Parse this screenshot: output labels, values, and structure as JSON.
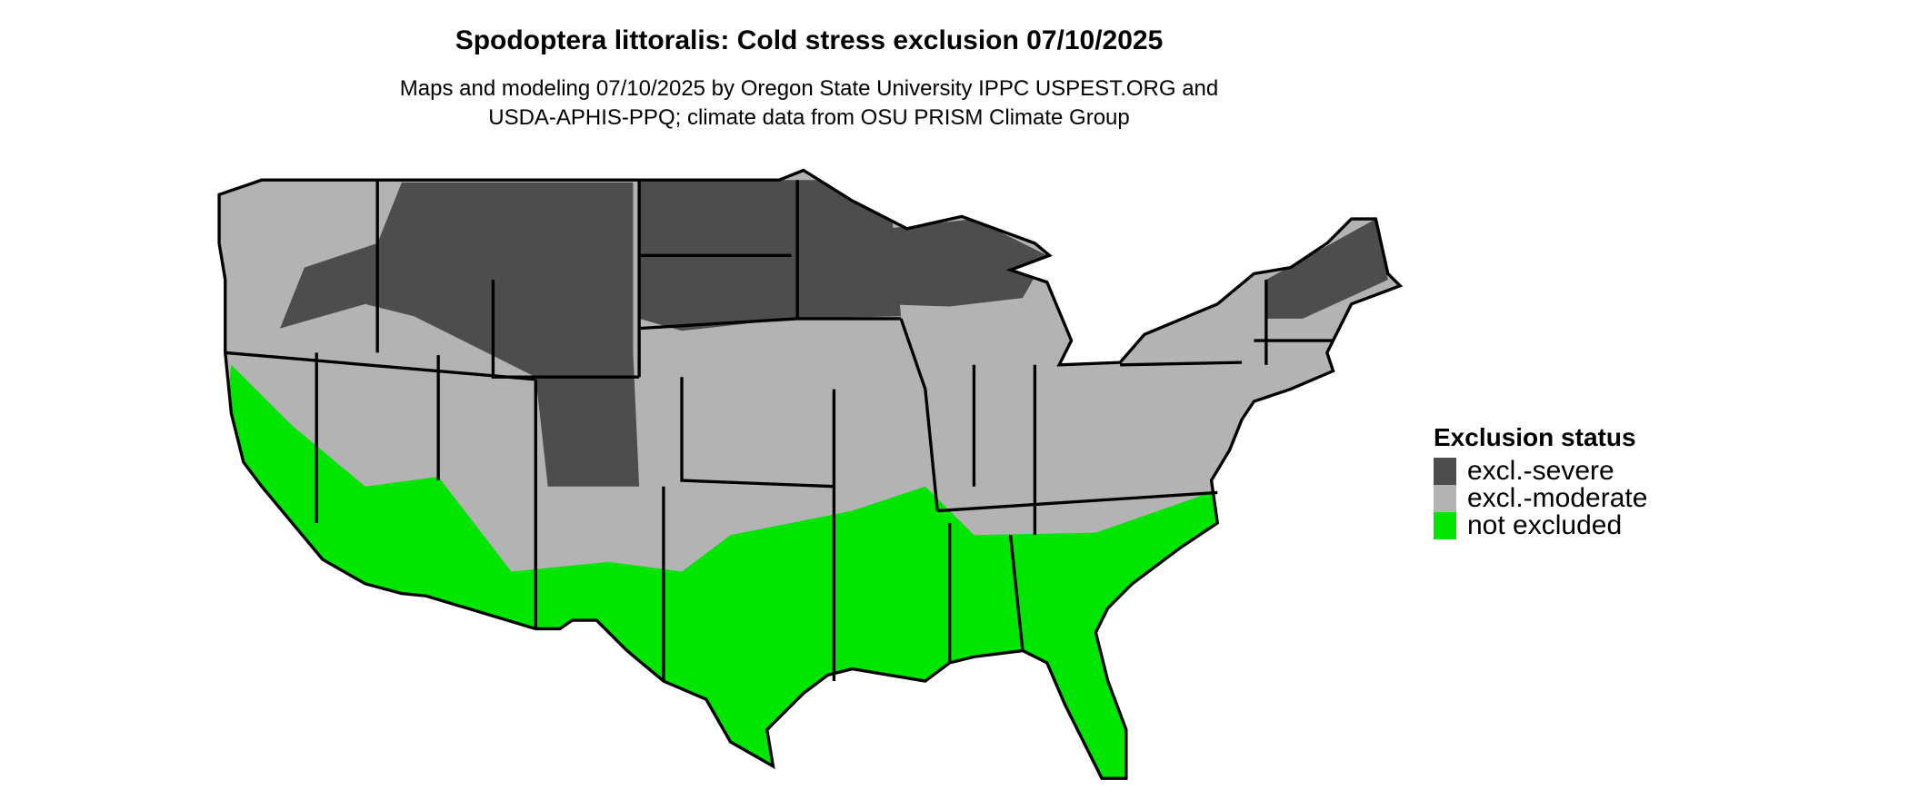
{
  "title": "Spodoptera littoralis: Cold stress exclusion 07/10/2025",
  "subtitle_lines": [
    "Maps and modeling 07/10/2025 by Oregon State University IPPC USPEST.ORG and",
    "USDA-APHIS-PPQ; climate data from OSU PRISM Climate Group"
  ],
  "legend": {
    "title": "Exclusion status",
    "items": [
      {
        "label": "excl.-severe",
        "color": "#4d4d4d"
      },
      {
        "label": "excl.-moderate",
        "color": "#b3b3b3"
      },
      {
        "label": "not excluded",
        "color": "#00e600"
      }
    ]
  },
  "map": {
    "region": "Contiguous United States",
    "border_color": "#000000"
  }
}
